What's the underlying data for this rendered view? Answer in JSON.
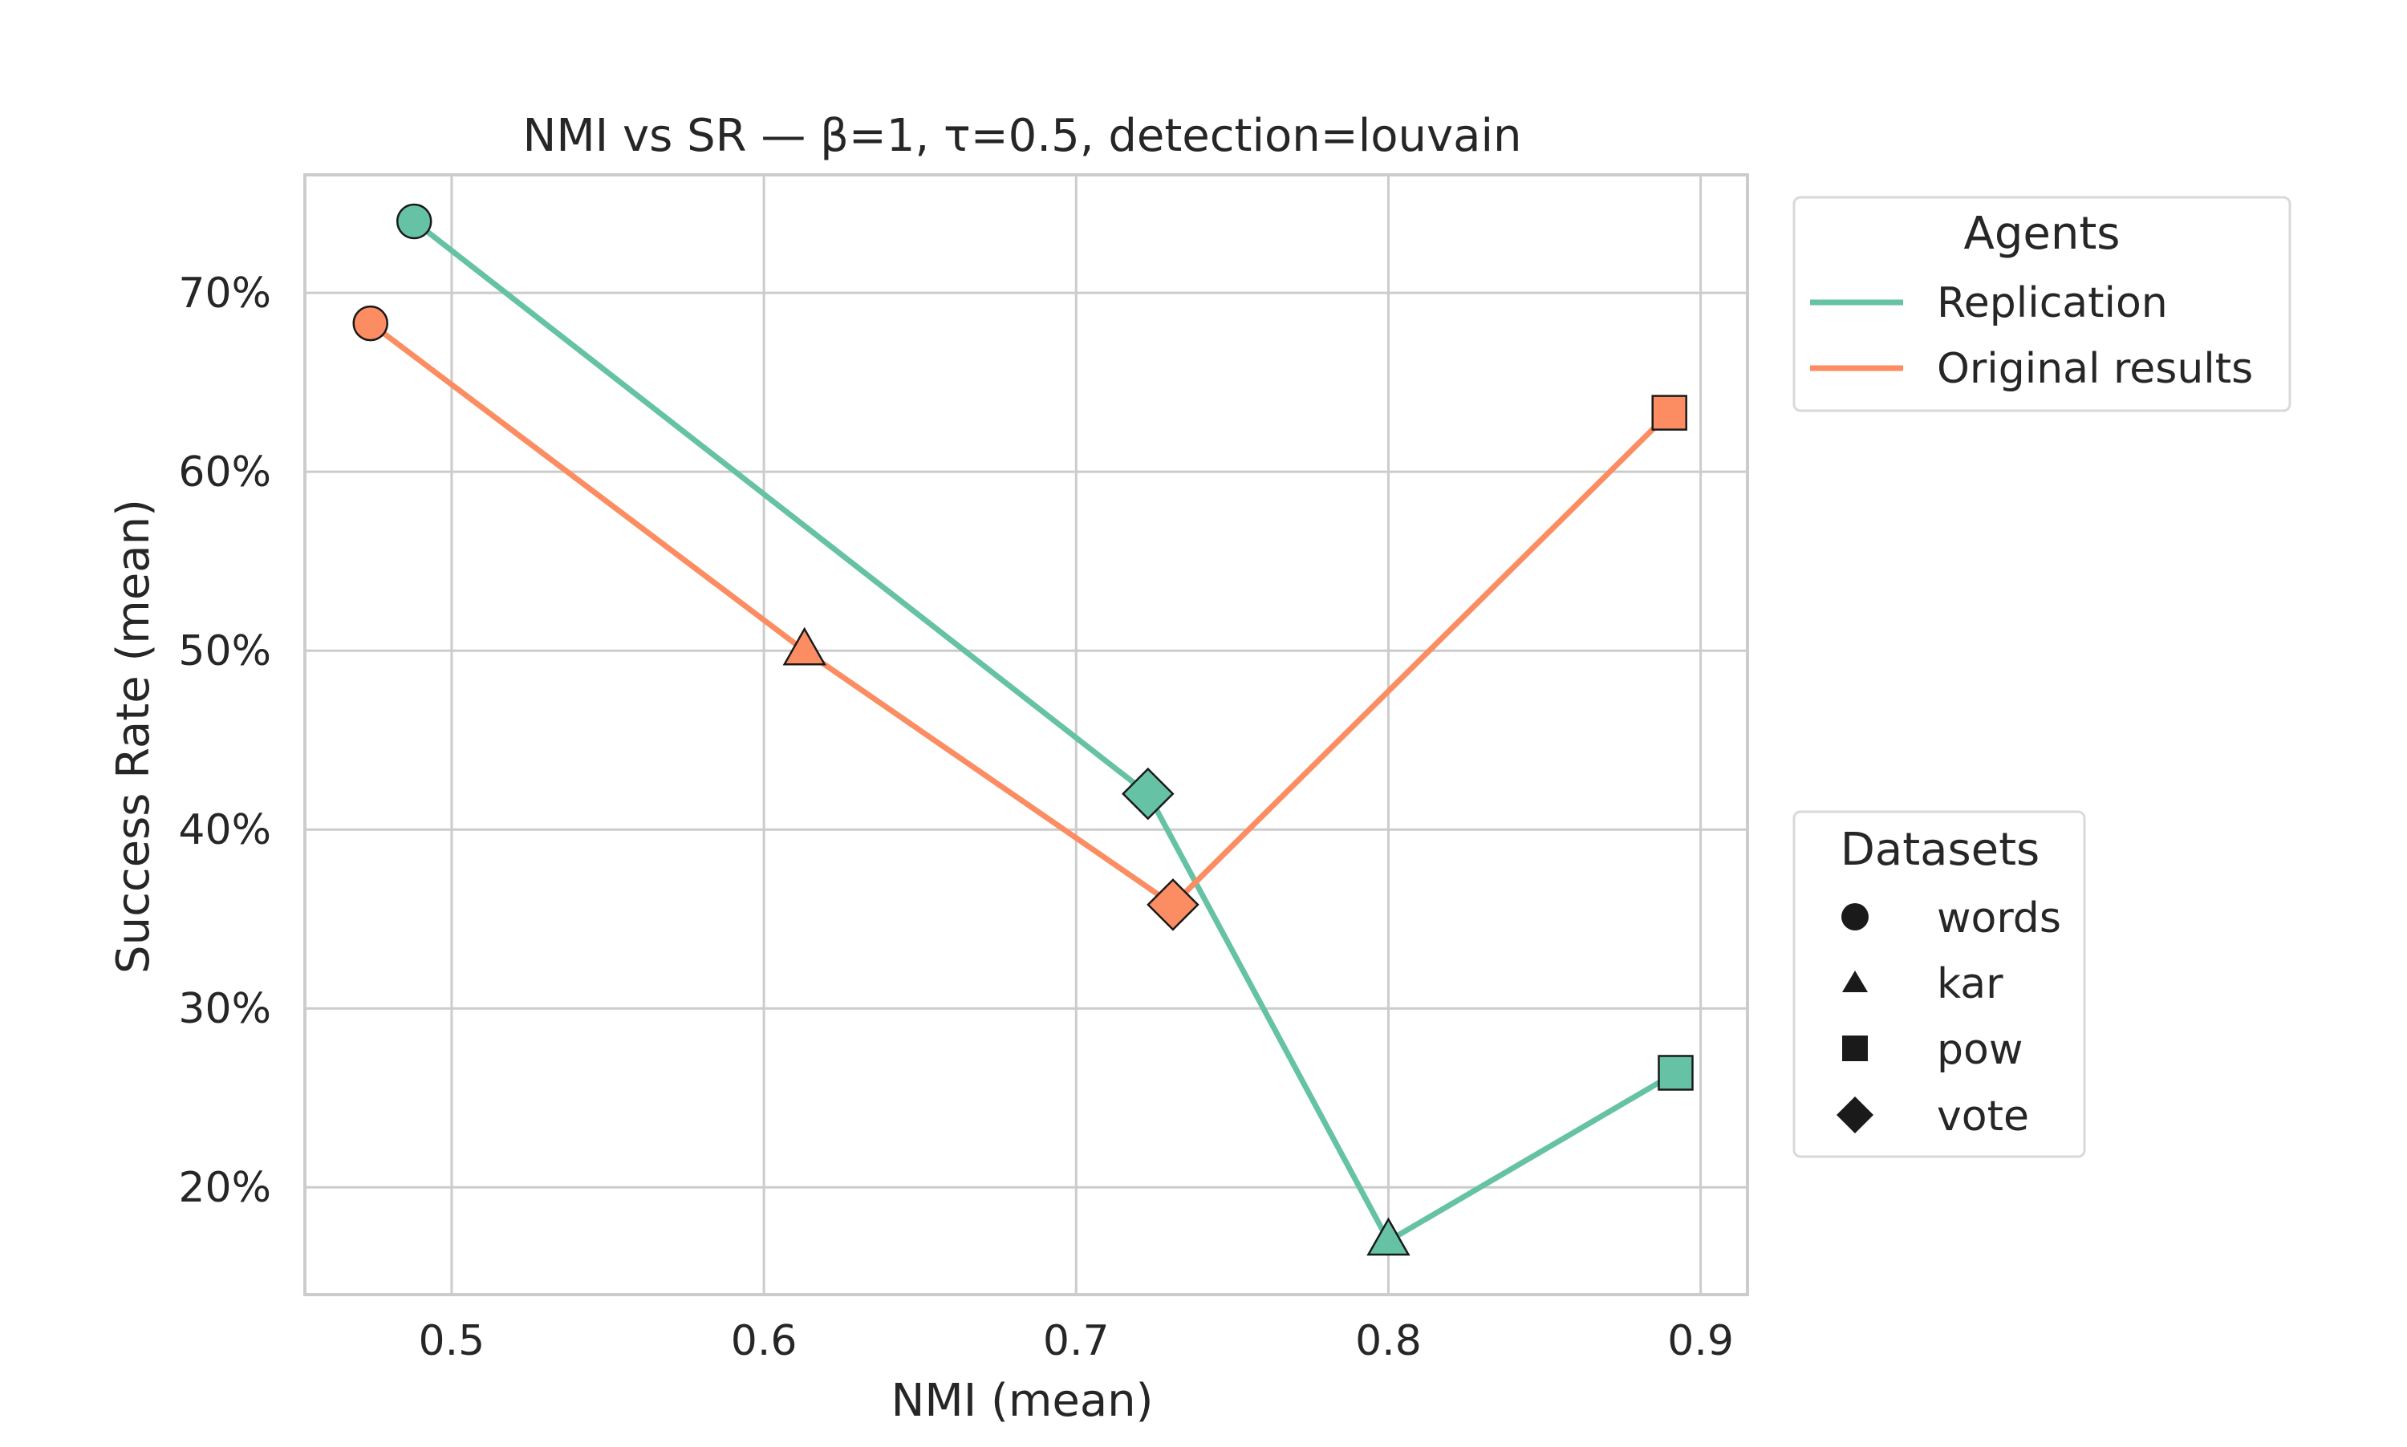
{
  "chart_data": {
    "type": "line",
    "title": "NMI vs SR — β=1, τ=0.5, detection=louvain",
    "xlabel": "NMI (mean)",
    "ylabel": "Success Rate (mean)",
    "xlim": [
      0.453,
      0.915
    ],
    "ylim": [
      0.14,
      0.766
    ],
    "x_ticks": [
      0.5,
      0.6,
      0.7,
      0.8,
      0.9
    ],
    "x_tick_labels": [
      "0.5",
      "0.6",
      "0.7",
      "0.8",
      "0.9"
    ],
    "y_ticks": [
      0.2,
      0.3,
      0.4,
      0.5,
      0.6,
      0.7
    ],
    "y_tick_labels": [
      "20%",
      "30%",
      "40%",
      "50%",
      "60%",
      "70%"
    ],
    "grid": true,
    "series": [
      {
        "name": "Replication",
        "color": "#66c2a5",
        "points": [
          {
            "dataset": "words",
            "x": 0.488,
            "y": 0.74
          },
          {
            "dataset": "vote",
            "x": 0.723,
            "y": 0.42
          },
          {
            "dataset": "kar",
            "x": 0.8,
            "y": 0.17
          },
          {
            "dataset": "pow",
            "x": 0.892,
            "y": 0.264
          }
        ]
      },
      {
        "name": "Original results",
        "color": "#fc8d62",
        "points": [
          {
            "dataset": "words",
            "x": 0.474,
            "y": 0.683
          },
          {
            "dataset": "kar",
            "x": 0.613,
            "y": 0.5
          },
          {
            "dataset": "vote",
            "x": 0.731,
            "y": 0.358
          },
          {
            "dataset": "pow",
            "x": 0.89,
            "y": 0.633
          }
        ]
      }
    ],
    "legends": {
      "agents": {
        "title": "Agents",
        "placement": "upper right, outside plot",
        "entries": [
          "Replication",
          "Original results"
        ]
      },
      "datasets": {
        "title": "Datasets",
        "placement": "lower right, outside plot",
        "entries": [
          {
            "label": "words",
            "marker": "circle"
          },
          {
            "label": "kar",
            "marker": "triangle"
          },
          {
            "label": "pow",
            "marker": "square"
          },
          {
            "label": "vote",
            "marker": "diamond"
          }
        ]
      }
    }
  }
}
